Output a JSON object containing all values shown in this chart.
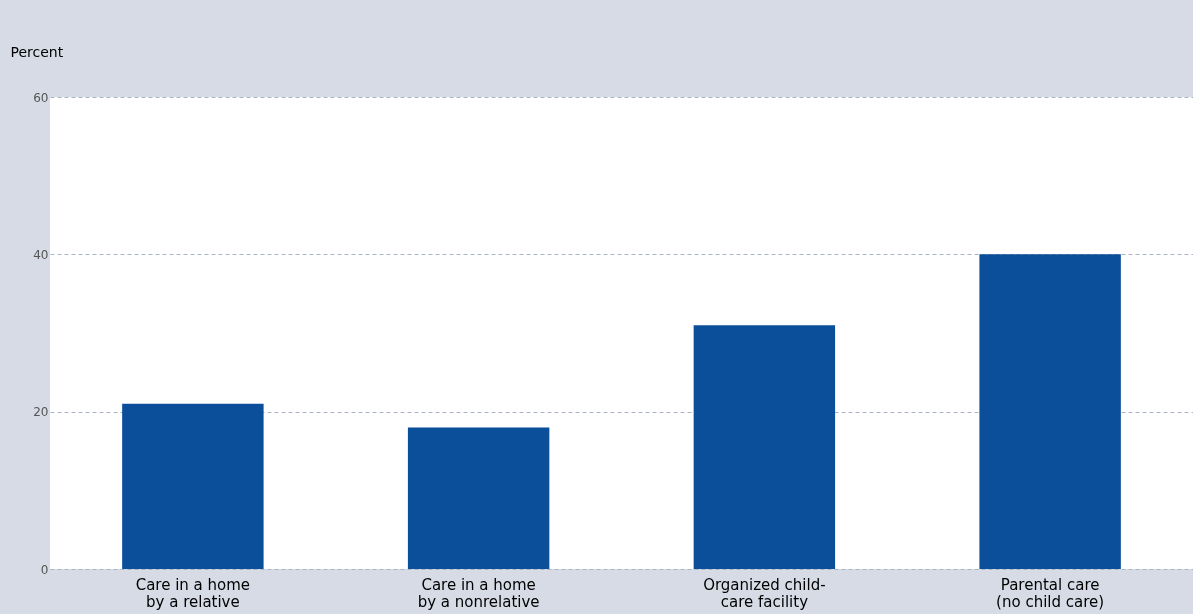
{
  "chart_data": {
    "type": "bar",
    "ylabel": "Percent",
    "categories": [
      "Care in a home\nby a relative",
      "Care in a home\nby a nonrelative",
      "Organized child-\ncare facility",
      "Parental care\n(no child care)"
    ],
    "values": [
      21,
      18,
      31,
      40
    ],
    "color": "#0b4f9a",
    "ylim": [
      0,
      60
    ],
    "yticks": [
      0,
      20,
      40,
      60
    ],
    "grid": "y"
  }
}
